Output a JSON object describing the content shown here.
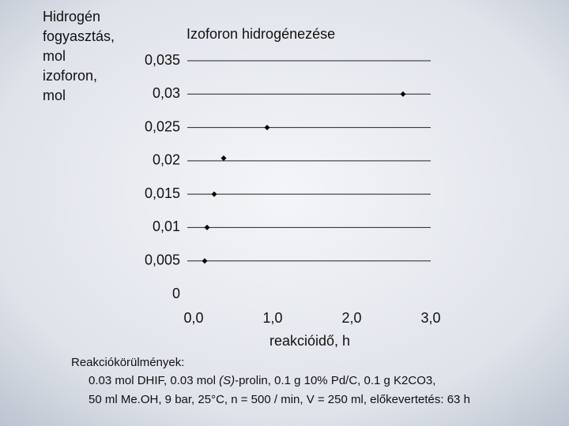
{
  "chart_data": {
    "type": "scatter",
    "title": "Izoforon hidrogénezése",
    "y_label": [
      "Hidrogén",
      "fogyasztás,",
      "mol",
      "izoforon,",
      "mol"
    ],
    "x_label": "reakcióidő, h",
    "x": [
      0.14,
      0.17,
      0.26,
      0.38,
      0.93,
      2.65
    ],
    "series": [
      {
        "name": "Izoforon",
        "color": "#000000",
        "values": [
          0.005,
          0.01,
          0.015,
          0.0204,
          0.025,
          0.03
        ]
      }
    ],
    "xlim": [
      0,
      3
    ],
    "xticks": [
      {
        "value": 0,
        "label": "0,0"
      },
      {
        "value": 1,
        "label": "1,0"
      },
      {
        "value": 2,
        "label": "2,0"
      },
      {
        "value": 3,
        "label": "3,0"
      }
    ],
    "ylim": [
      0,
      0.035
    ],
    "yticks": [
      0,
      {
        "value": 0.005,
        "label": "0,005"
      },
      {
        "value": 0.01,
        "label": "0,01"
      },
      {
        "value": 0.015,
        "label": "0,015"
      },
      {
        "value": 0.02,
        "label": "0,02"
      },
      {
        "value": 0.025,
        "label": "0,025"
      },
      {
        "value": 0.03,
        "label": "0,03"
      },
      {
        "value": 0.035,
        "label": "0,035"
      }
    ],
    "grid": true,
    "notes": {
      "heading": "Reakciókörülmények:",
      "line1": [
        "0.03 mol DHIF, 0.03 mol ",
        "(S)",
        "-prolin, 0.1 g 10% Pd/C, 0.1 g K2CO3,"
      ],
      "line2": "50 ml Me.OH, 9 bar, 25°C, n = 500 / min, V = 250 ml, előkevertetés: 63 h"
    }
  }
}
